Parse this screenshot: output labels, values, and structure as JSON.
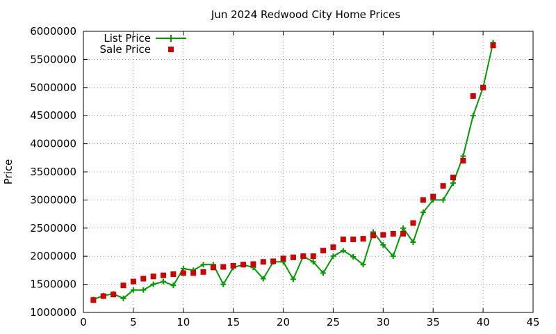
{
  "chart_data": {
    "type": "line",
    "title": "Jun 2024 Redwood City Home Prices",
    "xlabel": "",
    "ylabel": "Price",
    "xlim": [
      0,
      45
    ],
    "ylim": [
      1000000,
      6000000
    ],
    "x_ticks": [
      0,
      5,
      10,
      15,
      20,
      25,
      30,
      35,
      40,
      45
    ],
    "y_ticks": [
      1000000,
      1500000,
      2000000,
      2500000,
      3000000,
      3500000,
      4000000,
      4500000,
      5000000,
      5500000,
      6000000
    ],
    "grid": true,
    "legend_position": "top-left",
    "series": [
      {
        "name": "List Price",
        "style": "line-with-plus-markers",
        "color": "#009900",
        "x": [
          1,
          2,
          3,
          4,
          5,
          6,
          7,
          8,
          9,
          10,
          11,
          12,
          13,
          14,
          15,
          16,
          17,
          18,
          19,
          20,
          21,
          22,
          23,
          24,
          25,
          26,
          27,
          28,
          29,
          30,
          31,
          32,
          33,
          34,
          35,
          36,
          37,
          38,
          39,
          40,
          41
        ],
        "values": [
          1230000,
          1300000,
          1330000,
          1250000,
          1400000,
          1400000,
          1500000,
          1550000,
          1480000,
          1780000,
          1750000,
          1850000,
          1850000,
          1500000,
          1800000,
          1850000,
          1800000,
          1600000,
          1900000,
          1900000,
          1590000,
          2000000,
          1900000,
          1700000,
          2000000,
          2100000,
          1990000,
          1850000,
          2430000,
          2200000,
          2000000,
          2500000,
          2250000,
          2780000,
          3000000,
          3000000,
          3300000,
          3780000,
          4500000,
          5000000,
          5800000
        ]
      },
      {
        "name": "Sale Price",
        "style": "square-markers",
        "color": "#cc0000",
        "x": [
          1,
          2,
          3,
          4,
          5,
          6,
          7,
          8,
          9,
          10,
          11,
          12,
          13,
          14,
          15,
          16,
          17,
          18,
          19,
          20,
          21,
          22,
          23,
          24,
          25,
          26,
          27,
          28,
          29,
          30,
          31,
          32,
          33,
          34,
          35,
          36,
          37,
          38,
          39,
          40,
          41
        ],
        "values": [
          1220000,
          1290000,
          1320000,
          1480000,
          1550000,
          1600000,
          1640000,
          1660000,
          1680000,
          1700000,
          1700000,
          1720000,
          1800000,
          1810000,
          1830000,
          1850000,
          1860000,
          1900000,
          1910000,
          1960000,
          1980000,
          2000000,
          2000000,
          2100000,
          2160000,
          2300000,
          2300000,
          2310000,
          2370000,
          2380000,
          2400000,
          2400000,
          2590000,
          3000000,
          3060000,
          3250000,
          3400000,
          3700000,
          4850000,
          5000000,
          5750000
        ]
      }
    ]
  }
}
